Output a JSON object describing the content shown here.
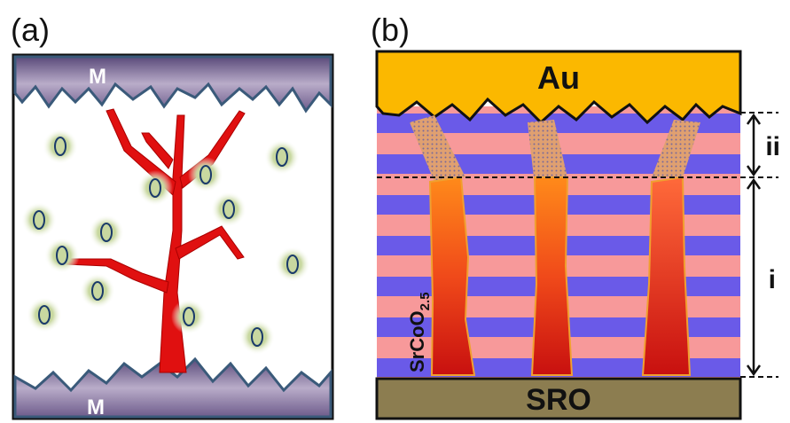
{
  "panels": [
    {
      "label": "(a)",
      "electrode_top": "M",
      "electrode_bottom": "M"
    },
    {
      "label": "(b)",
      "top_electrode": "Au",
      "bottom_electrode": "SRO",
      "layer_label": {
        "formula": "SrCoO",
        "subscript": "2.5"
      },
      "regions": [
        "ii",
        "i"
      ]
    }
  ]
}
